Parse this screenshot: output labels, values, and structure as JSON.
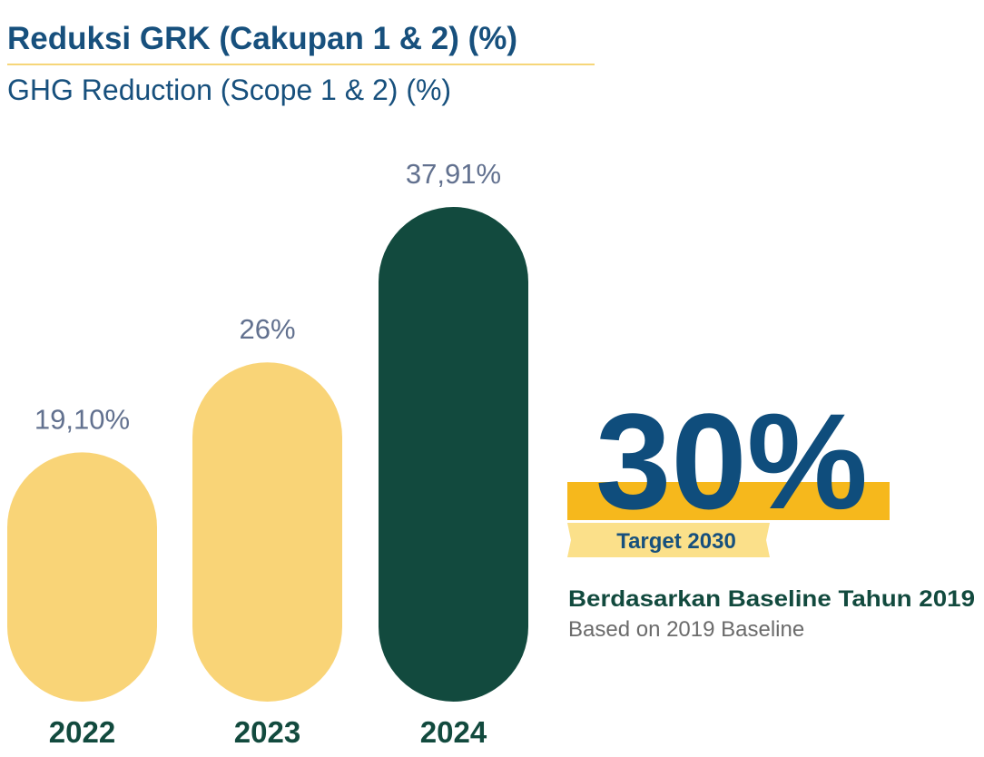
{
  "chart_data": {
    "type": "bar",
    "title": "Reduksi GRK (Cakupan 1 & 2) (%)",
    "subtitle": "GHG Reduction (Scope 1 & 2) (%)",
    "categories": [
      "2022",
      "2023",
      "2024"
    ],
    "values": [
      19.1,
      26,
      37.91
    ],
    "value_labels": [
      "19,10%",
      "26%",
      "37,91%"
    ],
    "colors": [
      "#f9d477",
      "#f9d477",
      "#124a3e"
    ],
    "annotations": {
      "target_value": "30%",
      "target_label": "Target 2030",
      "baseline": "Berdasarkan Baseline Tahun 2019",
      "baseline_en": "Based on 2019 Baseline"
    }
  }
}
